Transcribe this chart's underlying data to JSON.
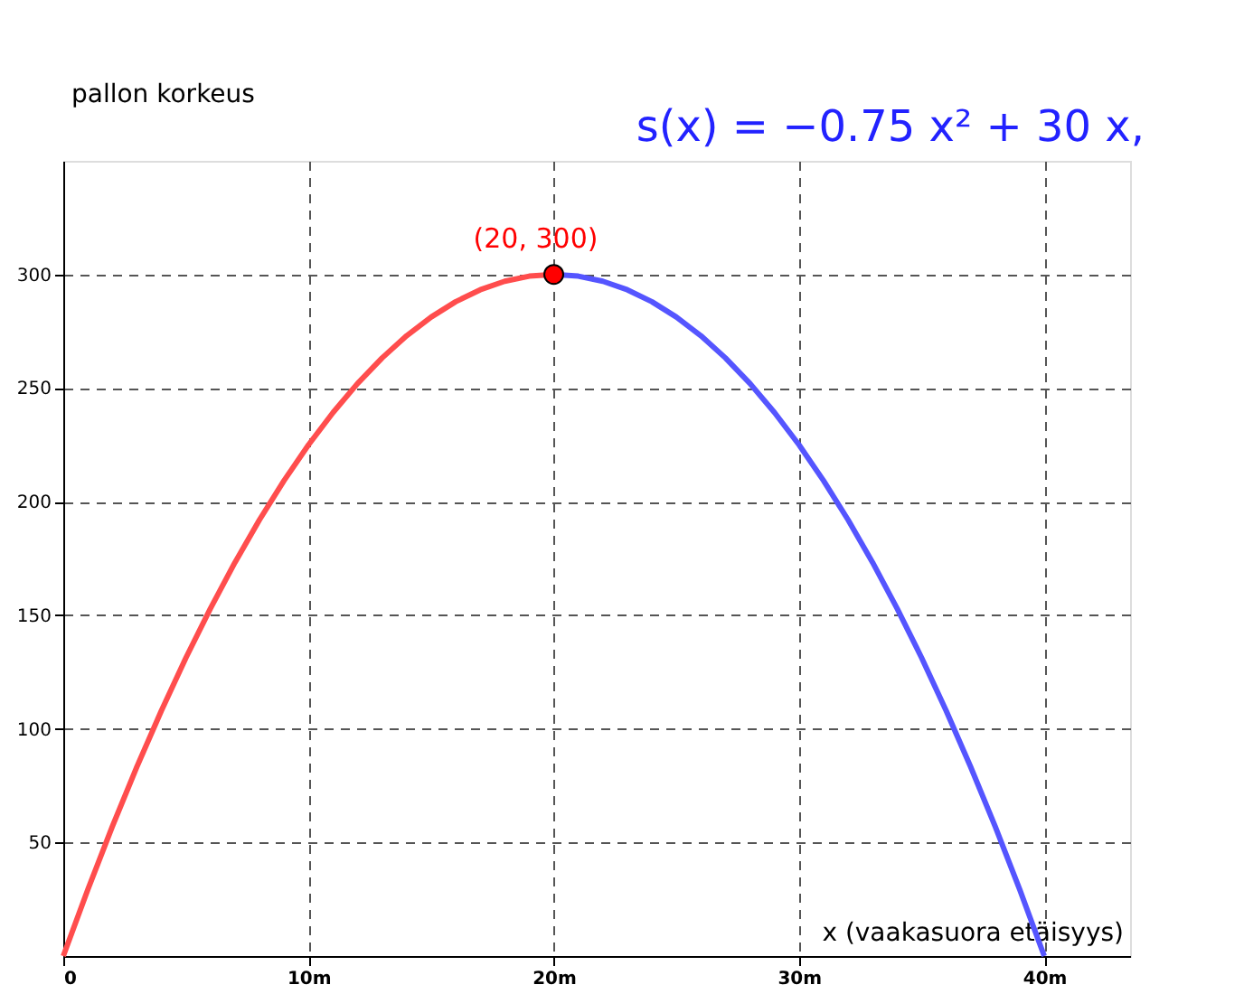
{
  "chart_data": {
    "type": "line",
    "xlabel": "x (vaakasuora etäisyys)",
    "ylabel": "pallon korkeus",
    "xlim": [
      0,
      43.5
    ],
    "ylim": [
      0,
      350
    ],
    "xticks": [
      0,
      {
        "value": 10,
        "label": "10m"
      },
      {
        "value": 20,
        "label": "20m"
      },
      {
        "value": 30,
        "label": "30m"
      },
      {
        "value": 40,
        "label": "40m"
      }
    ],
    "yticks": [
      50,
      100,
      150,
      200,
      250,
      300
    ],
    "grid": true,
    "line_style": "solid",
    "series": [
      {
        "color": "#ff4d4d",
        "x": [
          0,
          1,
          2,
          3,
          4,
          5,
          6,
          7,
          8,
          9,
          10,
          11,
          12,
          13,
          14,
          15,
          16,
          17,
          18,
          19,
          20
        ],
        "values": [
          0,
          29.25,
          57,
          83.25,
          108,
          131.25,
          153,
          173.25,
          192,
          209.25,
          225,
          239.25,
          252,
          263.25,
          273,
          281.25,
          288,
          293.25,
          297,
          299.25,
          300
        ]
      },
      {
        "color": "#5555ff",
        "x": [
          20,
          21,
          22,
          23,
          24,
          25,
          26,
          27,
          28,
          29,
          30,
          31,
          32,
          33,
          34,
          35,
          36,
          37,
          38,
          39,
          40
        ],
        "values": [
          300,
          299.25,
          297,
          293.25,
          288,
          281.25,
          273,
          263.25,
          252,
          239.25,
          225,
          209.25,
          192,
          173.25,
          153,
          131.25,
          108,
          83.25,
          57,
          29.25,
          0
        ]
      },
      {
        "type": "scatter",
        "color": "#ff0000",
        "marker": "circle",
        "x": [
          20
        ],
        "values": [
          300
        ]
      }
    ],
    "annotations": [
      {
        "text": "(20, 300)",
        "x": 20,
        "y": 300
      },
      "s(x) = −0.75 x² + 30 x,"
    ]
  }
}
